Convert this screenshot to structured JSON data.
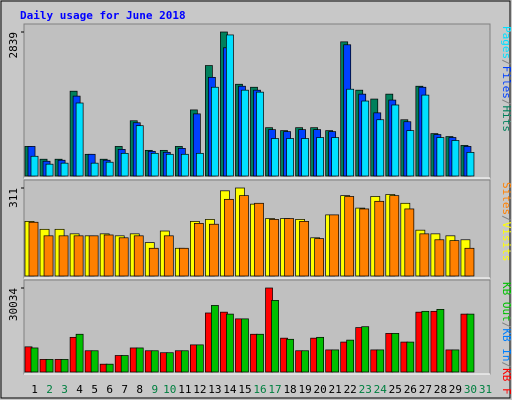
{
  "chart_data": [
    {
      "type": "bar",
      "title": "Daily usage for June 2018",
      "separator": "/",
      "categories": [
        "1",
        "2",
        "3",
        "4",
        "5",
        "6",
        "7",
        "8",
        "9",
        "10",
        "11",
        "12",
        "13",
        "14",
        "15",
        "16",
        "17",
        "18",
        "19",
        "20",
        "21",
        "22",
        "23",
        "24",
        "25",
        "26",
        "27",
        "28",
        "29",
        "30",
        "31"
      ],
      "category_colors": [
        "#000000",
        "#008040",
        "#008040",
        "#000000",
        "#000000",
        "#000000",
        "#000000",
        "#000000",
        "#008040",
        "#008040",
        "#000000",
        "#000000",
        "#000000",
        "#000000",
        "#000000",
        "#008040",
        "#008040",
        "#000000",
        "#000000",
        "#000000",
        "#000000",
        "#000000",
        "#008040",
        "#008040",
        "#000000",
        "#000000",
        "#000000",
        "#000000",
        "#000000",
        "#008040",
        "#008040"
      ],
      "ylim": [
        0,
        2839
      ],
      "yticks": [
        2839
      ],
      "series": [
        {
          "name": "Hits",
          "color": "#00805c",
          "values": [
            583,
            331,
            331,
            1672,
            428,
            331,
            583,
            1089,
            506,
            506,
            583,
            1303,
            2178,
            2839,
            1809,
            1750,
            953,
            895,
            953,
            953,
            895,
            2645,
            1692,
            1517,
            1614,
            1109,
            1770,
            836,
            778,
            603,
            0
          ]
        },
        {
          "name": "Files",
          "color": "#0040ff",
          "values": [
            583,
            291,
            311,
            1575,
            428,
            311,
            525,
            1050,
            487,
            467,
            545,
            1225,
            1945,
            2528,
            1770,
            1692,
            914,
            875,
            914,
            914,
            875,
            2587,
            1614,
            1245,
            1497,
            1070,
            1750,
            817,
            759,
            583,
            0
          ]
        },
        {
          "name": "Pages",
          "color": "#00e0ff",
          "values": [
            389,
            233,
            253,
            1439,
            253,
            272,
            447,
            992,
            447,
            428,
            428,
            447,
            1750,
            2781,
            1692,
            1653,
            739,
            739,
            739,
            758,
            758,
            1711,
            1478,
            1109,
            1400,
            895,
            1595,
            758,
            700,
            466,
            0
          ]
        }
      ]
    },
    {
      "type": "bar",
      "separator": "/",
      "ylim": [
        0,
        311
      ],
      "yticks": [
        311
      ],
      "series": [
        {
          "name": "Visits",
          "color": "#ffff00",
          "values": [
            193,
            165,
            165,
            149,
            142,
            149,
            142,
            149,
            118,
            159,
            98,
            193,
            200,
            301,
            311,
            254,
            203,
            203,
            200,
            135,
            216,
            284,
            240,
            281,
            288,
            257,
            162,
            149,
            142,
            128,
            0
          ]
        },
        {
          "name": "Sites",
          "color": "#ff8000",
          "values": [
            190,
            142,
            142,
            142,
            142,
            145,
            135,
            142,
            98,
            142,
            98,
            186,
            183,
            271,
            284,
            257,
            200,
            203,
            193,
            132,
            216,
            281,
            237,
            264,
            284,
            237,
            149,
            128,
            125,
            98,
            0
          ]
        }
      ]
    },
    {
      "type": "bar",
      "separator": "/",
      "ylim": [
        0,
        30034
      ],
      "yticks": [
        30034
      ],
      "series": [
        {
          "name": "KB F",
          "color": "#ff0000",
          "values": [
            9000,
            4500,
            4500,
            12400,
            7600,
            2800,
            5900,
            8600,
            7600,
            6900,
            7600,
            9700,
            21100,
            21400,
            19000,
            13500,
            30034,
            12100,
            7600,
            12100,
            7900,
            10700,
            15900,
            7900,
            13800,
            10700,
            21400,
            21700,
            7900,
            20700,
            0
          ]
        },
        {
          "name": "KB In",
          "color": "#0080ff",
          "values": [
            0,
            0,
            0,
            0,
            0,
            0,
            0,
            0,
            0,
            0,
            0,
            0,
            0,
            0,
            0,
            0,
            0,
            0,
            0,
            0,
            0,
            0,
            0,
            0,
            0,
            0,
            0,
            0,
            0,
            0,
            0
          ]
        },
        {
          "name": "KB Out",
          "color": "#00c000",
          "values": [
            8600,
            4500,
            4500,
            13500,
            7600,
            2800,
            5900,
            8600,
            7600,
            6900,
            7600,
            9700,
            23800,
            20700,
            19000,
            13500,
            25600,
            11700,
            7600,
            12400,
            7900,
            11400,
            16200,
            7900,
            13800,
            10700,
            21700,
            22400,
            7900,
            20700,
            0
          ]
        }
      ]
    }
  ]
}
